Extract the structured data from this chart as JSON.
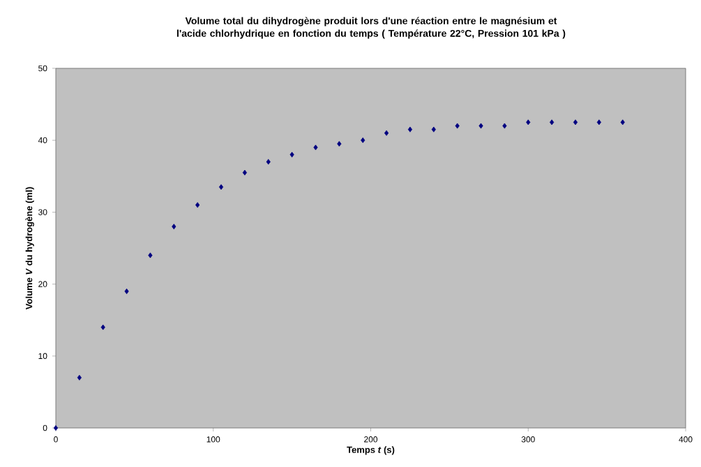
{
  "chart_data": {
    "type": "scatter",
    "title": "Volume total du dihydrogène produit lors d'une réaction entre le magnésium et l'acide chlorhydrique en fonction du temps ( Température 22°C, Pression 101 kPa )",
    "xlabel": "Temps *t* (s)",
    "ylabel": "Volume *V* du hydrogène (ml)",
    "x": [
      0,
      15,
      30,
      45,
      60,
      75,
      90,
      105,
      120,
      135,
      150,
      165,
      180,
      195,
      210,
      225,
      240,
      255,
      270,
      285,
      300,
      315,
      330,
      345,
      360
    ],
    "series": [
      {
        "color": "#000080",
        "values": [
          0,
          7,
          14,
          19,
          24,
          28,
          31,
          33.5,
          35.5,
          37,
          38,
          39,
          39.5,
          40,
          41,
          41.5,
          41.5,
          42,
          42,
          42,
          42.5,
          42.5,
          42.5,
          42.5,
          42.5
        ]
      }
    ],
    "xlim": [
      0,
      400
    ],
    "xticks": [
      0,
      100,
      200,
      300,
      400
    ],
    "ylim": [
      0,
      50
    ],
    "yticks": [
      0,
      10,
      20,
      30,
      40,
      50
    ],
    "marker": "diamond"
  }
}
